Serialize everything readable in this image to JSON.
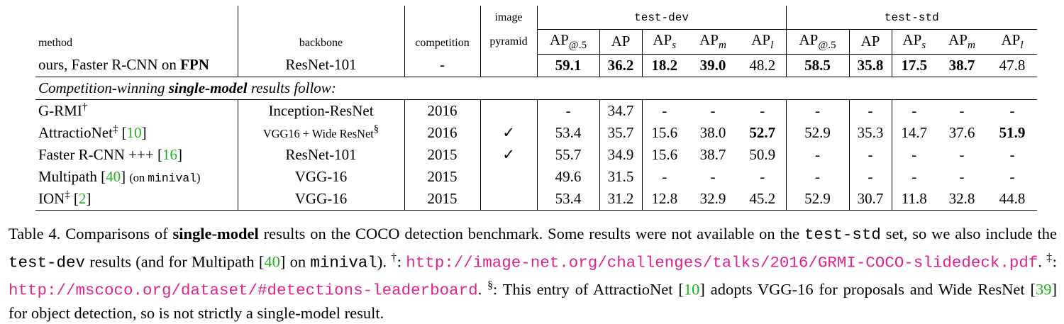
{
  "table": {
    "headers": {
      "method": "method",
      "backbone": "backbone",
      "competition": "competition",
      "pyramid": [
        "image",
        "pyramid"
      ],
      "groups": [
        "test-dev",
        "test-std"
      ],
      "ap_columns": [
        {
          "text": "AP",
          "sub": "@.5"
        },
        {
          "text": "AP"
        },
        {
          "text": "AP",
          "sub": "s"
        },
        {
          "text": "AP",
          "sub": "m"
        },
        {
          "text": "AP",
          "sub": "l"
        }
      ]
    },
    "rows": [
      {
        "method": [
          "ours, Faster R-CNN on ",
          {
            "text": "FPN",
            "kind": "bold"
          }
        ],
        "backbone": [
          "ResNet-101"
        ],
        "competition": "-",
        "pyramid": null,
        "values": [
          "59.1",
          "36.2",
          "18.2",
          "39.0",
          "48.2",
          "58.5",
          "35.8",
          "17.5",
          "38.7",
          "47.8"
        ],
        "bold": [
          0,
          1,
          2,
          3,
          5,
          6,
          7,
          8
        ]
      },
      {
        "method": [
          "G-RMI",
          {
            "text": "†",
            "kind": "sup"
          }
        ],
        "backbone": [
          "Inception-ResNet"
        ],
        "competition": "2016",
        "pyramid": null,
        "values": [
          "-",
          "34.7",
          "-",
          "-",
          "-",
          "-",
          "-",
          "-",
          "-",
          "-"
        ],
        "bold": []
      },
      {
        "method": [
          "AttractioNet",
          {
            "text": "‡",
            "kind": "sup"
          },
          " [",
          {
            "text": "10",
            "kind": "ref"
          },
          "]"
        ],
        "backbone": [
          {
            "text": "VGG16 + Wide ResNet",
            "kind": "small"
          },
          {
            "text": "§",
            "kind": "sup"
          }
        ],
        "competition": "2016",
        "pyramid": "✓",
        "values": [
          "53.4",
          "35.7",
          "15.6",
          "38.0",
          "52.7",
          "52.9",
          "35.3",
          "14.7",
          "37.6",
          "51.9"
        ],
        "bold": [
          4,
          9
        ]
      },
      {
        "method": [
          "Faster R-CNN +++ [",
          {
            "text": "16",
            "kind": "ref"
          },
          "]"
        ],
        "backbone": [
          "ResNet-101"
        ],
        "competition": "2015",
        "pyramid": "✓",
        "values": [
          "55.7",
          "34.9",
          "15.6",
          "38.7",
          "50.9",
          "-",
          "-",
          "-",
          "-",
          "-"
        ],
        "bold": []
      },
      {
        "method": [
          "Multipath [",
          {
            "text": "40",
            "kind": "ref"
          },
          "] ",
          {
            "text": "(on ",
            "kind": "small"
          },
          {
            "text": "minival",
            "kind": "smallmono"
          },
          {
            "text": ")",
            "kind": "small"
          }
        ],
        "backbone": [
          "VGG-16"
        ],
        "competition": "2015",
        "pyramid": null,
        "values": [
          "49.6",
          "31.5",
          "-",
          "-",
          "-",
          "-",
          "-",
          "-",
          "-",
          "-"
        ],
        "bold": []
      },
      {
        "method": [
          "ION",
          {
            "text": "‡",
            "kind": "sup"
          },
          " [",
          {
            "text": "2",
            "kind": "ref"
          },
          "]"
        ],
        "backbone": [
          "VGG-16"
        ],
        "competition": "2015",
        "pyramid": null,
        "values": [
          "53.4",
          "31.2",
          "12.8",
          "32.9",
          "45.2",
          "52.9",
          "30.7",
          "11.8",
          "32.8",
          "44.8"
        ],
        "bold": []
      }
    ],
    "section_row": {
      "after_row": 0,
      "segments": [
        "Competition-winning ",
        {
          "text": "single-model",
          "kind": "bold"
        },
        " results follow:"
      ]
    }
  },
  "caption": [
    "Table 4. Comparisons of ",
    {
      "text": "single-model",
      "kind": "bold"
    },
    " results on the COCO detection benchmark.  Some results were not available on the ",
    {
      "text": "test-std",
      "kind": "mono"
    },
    " set, so we also include the ",
    {
      "text": "test-dev",
      "kind": "mono"
    },
    " results (and for Multipath [",
    {
      "text": "40",
      "kind": "ref"
    },
    "] on ",
    {
      "text": "minival",
      "kind": "mono"
    },
    "). ",
    {
      "text": "†",
      "kind": "sup"
    },
    ": ",
    {
      "text": "http://image-net.org/challenges/talks/2016/GRMI-COCO-slidedeck.pdf",
      "kind": "link"
    },
    ". ",
    {
      "text": "‡",
      "kind": "sup"
    },
    ": ",
    {
      "text": "http://mscoco.org/dataset/#detections-leaderboard",
      "kind": "link"
    },
    ". ",
    {
      "text": "§",
      "kind": "sup"
    },
    ": This entry of AttractioNet [",
    {
      "text": "10",
      "kind": "ref"
    },
    "] adopts VGG-16 for proposals and Wide ResNet [",
    {
      "text": "39",
      "kind": "ref"
    },
    "] for object detection, so is not strictly a single-model result."
  ]
}
